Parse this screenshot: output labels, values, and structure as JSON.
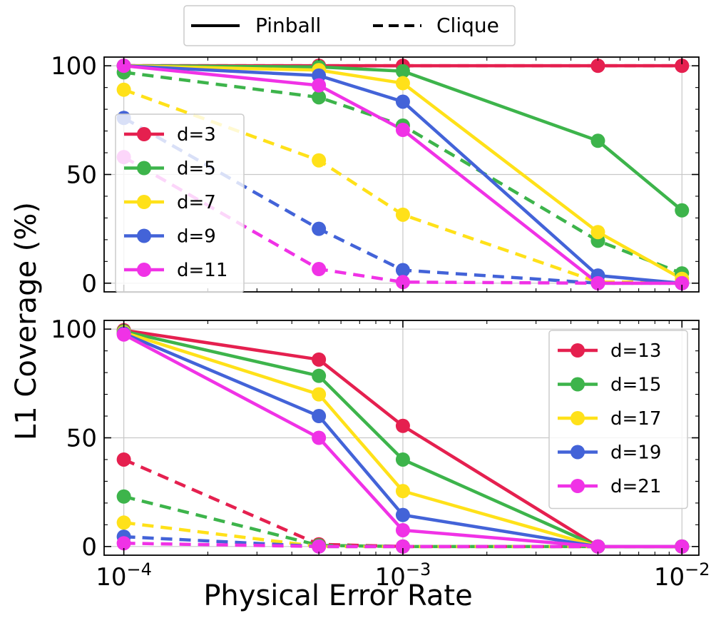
{
  "chart_data": {
    "type": "line",
    "ylabel": "L1 Coverage (%)",
    "xlabel": "Physical Error Rate",
    "xscale": "log",
    "x": [
      0.0001,
      0.0005,
      0.001,
      0.005,
      0.01
    ],
    "xlim": [
      8.5e-05,
      0.0115
    ],
    "xticks": [
      0.0001,
      0.001,
      0.01
    ],
    "xtick_labels": [
      {
        "base": "10",
        "exp": "−4"
      },
      {
        "base": "10",
        "exp": "−3"
      },
      {
        "base": "10",
        "exp": "−2"
      }
    ],
    "ylim": [
      -4,
      104
    ],
    "yticks": [
      0,
      50,
      100
    ],
    "ytick_labels": [
      "0",
      "50",
      "100"
    ],
    "style_legend": [
      {
        "label": "Pinball",
        "style": "solid"
      },
      {
        "label": "Clique",
        "style": "dashed"
      }
    ],
    "panels": [
      {
        "name": "top",
        "legend_position": "center-left",
        "series": [
          {
            "name": "d=3",
            "color": "#e5204f",
            "pinball": [
              100,
              100,
              100,
              100,
              100
            ],
            "clique": [
              100,
              100,
              100,
              100,
              100
            ]
          },
          {
            "name": "d=5",
            "color": "#3db44b",
            "pinball": [
              100,
              99.5,
              97.5,
              65.5,
              33.5
            ],
            "clique": [
              97,
              85.5,
              72.5,
              19.5,
              4.5
            ]
          },
          {
            "name": "d=7",
            "color": "#ffe119",
            "pinball": [
              100,
              98,
              92,
              23.5,
              2
            ],
            "clique": [
              89,
              56.5,
              31.5,
              0.5,
              0.5
            ]
          },
          {
            "name": "d=9",
            "color": "#4363d8",
            "pinball": [
              100,
              95.5,
              83.5,
              3.5,
              0
            ],
            "clique": [
              76,
              25,
              6,
              0,
              0
            ]
          },
          {
            "name": "d=11",
            "color": "#f032e6",
            "pinball": [
              100,
              91,
              70.5,
              0,
              0
            ],
            "clique": [
              58,
              6.5,
              0.5,
              0,
              0
            ]
          }
        ]
      },
      {
        "name": "bottom",
        "legend_position": "upper-right",
        "series": [
          {
            "name": "d=13",
            "color": "#e5204f",
            "pinball": [
              99.5,
              86,
              55.5,
              0,
              0
            ],
            "clique": [
              40,
              1,
              0,
              0,
              0
            ]
          },
          {
            "name": "d=15",
            "color": "#3db44b",
            "pinball": [
              99,
              78.5,
              40,
              0,
              0
            ],
            "clique": [
              23,
              0.5,
              0,
              0,
              0
            ]
          },
          {
            "name": "d=17",
            "color": "#ffe119",
            "pinball": [
              98.5,
              70,
              25.5,
              0,
              0
            ],
            "clique": [
              11,
              0,
              0,
              0,
              0
            ]
          },
          {
            "name": "d=19",
            "color": "#4363d8",
            "pinball": [
              98,
              60,
              14.5,
              0,
              0
            ],
            "clique": [
              4.5,
              0,
              0,
              0,
              0
            ]
          },
          {
            "name": "d=21",
            "color": "#f032e6",
            "pinball": [
              97.5,
              50,
              7.5,
              0,
              0
            ],
            "clique": [
              1.5,
              0,
              0,
              0,
              0
            ]
          }
        ]
      }
    ]
  }
}
